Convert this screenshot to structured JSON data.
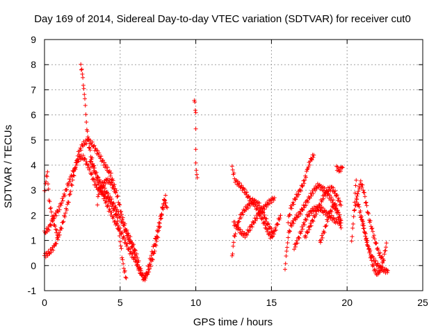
{
  "chart_data": {
    "type": "scatter",
    "title": "Day 169 of 2014, Sidereal Day-to-day VTEC variation (SDTVAR) for receiver cut0",
    "xlabel": "GPS time / hours",
    "ylabel": "SDTVAR / TECUs",
    "xlim": [
      0,
      25
    ],
    "ylim": [
      -1,
      9
    ],
    "xticks": [
      "0",
      "5",
      "10",
      "15",
      "20",
      "25"
    ],
    "yticks": [
      "-1",
      "0",
      "1",
      "2",
      "3",
      "4",
      "5",
      "6",
      "7",
      "8",
      "9"
    ],
    "grid": true,
    "marker": "plus",
    "color": "#ff0000",
    "tracks": [
      [
        [
          0.0,
          0.4
        ],
        [
          0.3,
          0.5
        ],
        [
          0.7,
          0.8
        ],
        [
          1.0,
          1.3
        ],
        [
          1.3,
          1.9
        ],
        [
          1.6,
          2.6
        ],
        [
          2.0,
          3.8
        ],
        [
          2.2,
          4.4
        ],
        [
          2.5,
          4.8
        ],
        [
          2.9,
          5.0
        ],
        [
          3.2,
          4.8
        ],
        [
          3.6,
          4.4
        ],
        [
          4.0,
          4.0
        ],
        [
          4.4,
          3.6
        ],
        [
          4.8,
          2.8
        ],
        [
          5.1,
          2.0
        ],
        [
          5.4,
          1.4
        ],
        [
          5.8,
          0.9
        ],
        [
          6.1,
          0.4
        ],
        [
          6.4,
          -0.3
        ],
        [
          6.6,
          -0.6
        ],
        [
          6.8,
          -0.2
        ],
        [
          7.1,
          0.5
        ],
        [
          7.4,
          1.2
        ],
        [
          7.7,
          2.0
        ],
        [
          7.9,
          2.6
        ],
        [
          8.1,
          2.3
        ]
      ],
      [
        [
          0.0,
          1.3
        ],
        [
          0.3,
          1.5
        ],
        [
          0.6,
          1.9
        ],
        [
          1.0,
          2.3
        ],
        [
          1.3,
          2.8
        ],
        [
          1.6,
          3.3
        ],
        [
          2.0,
          3.9
        ],
        [
          2.3,
          4.3
        ],
        [
          2.6,
          4.3
        ],
        [
          3.0,
          3.8
        ],
        [
          3.3,
          3.3
        ],
        [
          3.6,
          3.0
        ],
        [
          4.0,
          2.8
        ],
        [
          4.4,
          2.5
        ],
        [
          4.8,
          1.9
        ],
        [
          5.0,
          1.0
        ],
        [
          5.2,
          0.0
        ],
        [
          5.4,
          -0.5
        ]
      ],
      [
        [
          0.0,
          2.9
        ],
        [
          0.1,
          3.4
        ],
        [
          0.2,
          3.7
        ],
        [
          0.3,
          2.6
        ],
        [
          0.5,
          2.0
        ],
        [
          0.7,
          1.5
        ],
        [
          0.9,
          1.2
        ]
      ],
      [
        [
          2.4,
          8.0
        ],
        [
          2.5,
          7.6
        ],
        [
          2.6,
          7.1
        ],
        [
          2.7,
          6.3
        ],
        [
          2.8,
          5.5
        ],
        [
          2.9,
          4.9
        ],
        [
          3.1,
          4.3
        ],
        [
          3.4,
          3.6
        ],
        [
          3.7,
          3.1
        ],
        [
          4.0,
          2.6
        ],
        [
          4.3,
          2.2
        ],
        [
          4.7,
          1.7
        ],
        [
          5.0,
          1.4
        ],
        [
          5.3,
          1.0
        ],
        [
          5.6,
          0.6
        ],
        [
          6.0,
          0.2
        ],
        [
          6.3,
          -0.2
        ],
        [
          6.6,
          -0.5
        ],
        [
          6.9,
          -0.2
        ],
        [
          7.2,
          0.4
        ],
        [
          7.5,
          1.2
        ],
        [
          7.8,
          2.2
        ],
        [
          8.0,
          2.8
        ]
      ],
      [
        [
          3.0,
          4.2
        ],
        [
          3.3,
          3.8
        ],
        [
          3.6,
          3.4
        ],
        [
          4.0,
          3.0
        ],
        [
          4.4,
          2.6
        ],
        [
          4.8,
          2.2
        ],
        [
          5.2,
          1.6
        ],
        [
          5.6,
          1.0
        ],
        [
          6.0,
          0.4
        ],
        [
          6.3,
          -0.3
        ]
      ],
      [
        [
          3.5,
          2.5
        ],
        [
          3.6,
          3.0
        ],
        [
          3.8,
          3.2
        ],
        [
          4.1,
          3.4
        ],
        [
          4.4,
          3.3
        ],
        [
          4.7,
          2.9
        ]
      ],
      [
        [
          9.9,
          6.6
        ],
        [
          10.0,
          6.1
        ],
        [
          10.0,
          5.4
        ],
        [
          10.0,
          4.7
        ],
        [
          10.0,
          4.0
        ],
        [
          10.1,
          3.5
        ]
      ],
      [
        [
          12.4,
          3.9
        ],
        [
          12.6,
          3.4
        ],
        [
          12.9,
          3.2
        ],
        [
          13.2,
          3.0
        ],
        [
          13.5,
          2.7
        ],
        [
          13.9,
          2.4
        ],
        [
          14.2,
          2.1
        ],
        [
          14.5,
          1.7
        ],
        [
          14.8,
          1.3
        ],
        [
          15.0,
          1.1
        ],
        [
          15.3,
          1.5
        ],
        [
          15.6,
          2.0
        ]
      ],
      [
        [
          12.4,
          0.3
        ],
        [
          12.5,
          1.0
        ],
        [
          12.7,
          1.5
        ],
        [
          12.9,
          1.9
        ],
        [
          13.2,
          2.2
        ],
        [
          13.5,
          2.4
        ],
        [
          13.8,
          2.6
        ],
        [
          14.2,
          2.4
        ],
        [
          14.5,
          2.0
        ],
        [
          14.8,
          1.6
        ],
        [
          15.1,
          1.3
        ]
      ],
      [
        [
          12.5,
          1.7
        ],
        [
          12.7,
          1.6
        ],
        [
          13.0,
          1.3
        ],
        [
          13.3,
          1.2
        ],
        [
          13.6,
          1.5
        ],
        [
          13.9,
          1.8
        ],
        [
          14.2,
          2.1
        ],
        [
          14.5,
          2.3
        ],
        [
          14.8,
          2.5
        ],
        [
          15.2,
          2.7
        ]
      ],
      [
        [
          15.9,
          -0.1
        ],
        [
          16.0,
          0.5
        ],
        [
          16.1,
          1.2
        ],
        [
          16.3,
          1.6
        ],
        [
          16.6,
          1.9
        ],
        [
          16.9,
          2.1
        ],
        [
          17.2,
          2.4
        ],
        [
          17.5,
          2.7
        ],
        [
          17.8,
          3.0
        ],
        [
          18.1,
          3.2
        ],
        [
          18.5,
          3.0
        ],
        [
          18.9,
          2.7
        ],
        [
          19.3,
          2.3
        ],
        [
          19.6,
          1.8
        ]
      ],
      [
        [
          16.1,
          1.8
        ],
        [
          16.3,
          2.3
        ],
        [
          16.6,
          2.7
        ],
        [
          16.9,
          3.0
        ],
        [
          17.2,
          3.4
        ],
        [
          17.4,
          3.9
        ],
        [
          17.6,
          4.2
        ],
        [
          17.8,
          4.4
        ]
      ],
      [
        [
          16.5,
          0.7
        ],
        [
          16.8,
          1.1
        ],
        [
          17.1,
          1.6
        ],
        [
          17.4,
          2.0
        ],
        [
          17.7,
          2.2
        ],
        [
          18.0,
          2.3
        ],
        [
          18.4,
          2.2
        ],
        [
          18.8,
          2.0
        ],
        [
          19.2,
          1.8
        ],
        [
          19.6,
          1.7
        ]
      ],
      [
        [
          17.2,
          1.1
        ],
        [
          17.5,
          1.5
        ],
        [
          17.8,
          1.9
        ],
        [
          18.1,
          2.3
        ],
        [
          18.4,
          2.7
        ],
        [
          18.7,
          3.0
        ],
        [
          19.0,
          3.1
        ],
        [
          19.3,
          2.8
        ],
        [
          19.6,
          2.4
        ]
      ],
      [
        [
          18.2,
          0.9
        ],
        [
          18.5,
          1.4
        ],
        [
          18.8,
          2.0
        ],
        [
          19.1,
          2.4
        ],
        [
          19.4,
          2.1
        ],
        [
          19.6,
          1.5
        ]
      ],
      [
        [
          19.3,
          3.9
        ],
        [
          19.5,
          3.8
        ],
        [
          19.7,
          3.9
        ]
      ],
      [
        [
          20.3,
          1.0
        ],
        [
          20.4,
          1.6
        ],
        [
          20.5,
          2.6
        ],
        [
          20.6,
          3.4
        ]
      ],
      [
        [
          20.9,
          2.0
        ],
        [
          21.1,
          1.5
        ],
        [
          21.3,
          1.0
        ],
        [
          21.5,
          0.5
        ],
        [
          21.7,
          0.0
        ],
        [
          21.9,
          -0.3
        ],
        [
          22.1,
          -0.3
        ],
        [
          22.3,
          0.0
        ],
        [
          22.5,
          0.5
        ],
        [
          22.6,
          0.9
        ]
      ],
      [
        [
          20.6,
          2.6
        ],
        [
          20.8,
          2.3
        ],
        [
          21.0,
          1.8
        ],
        [
          21.2,
          1.2
        ],
        [
          21.4,
          0.7
        ],
        [
          21.6,
          0.4
        ],
        [
          21.9,
          0.1
        ],
        [
          22.2,
          -0.1
        ],
        [
          22.5,
          -0.2
        ],
        [
          22.7,
          -0.2
        ]
      ],
      [
        [
          20.5,
          2.2
        ],
        [
          20.7,
          2.9
        ],
        [
          20.9,
          3.3
        ],
        [
          21.1,
          3.0
        ],
        [
          21.3,
          2.3
        ],
        [
          21.5,
          1.8
        ],
        [
          21.7,
          1.3
        ],
        [
          21.9,
          0.9
        ],
        [
          22.1,
          0.5
        ],
        [
          22.4,
          0.2
        ]
      ]
    ]
  }
}
